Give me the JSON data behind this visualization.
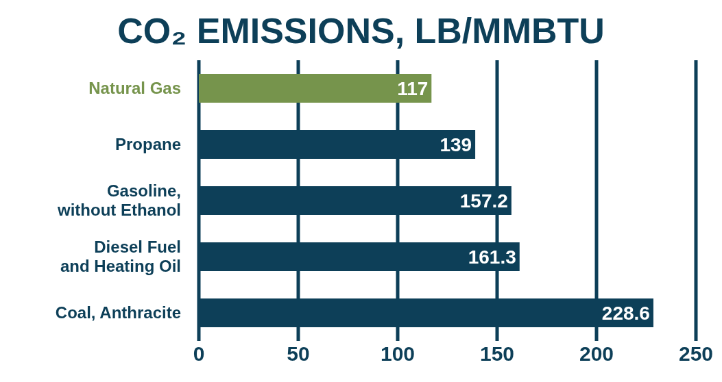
{
  "chart_data": {
    "type": "bar",
    "orientation": "horizontal",
    "title": "CO₂ EMISSIONS, LB/MMBTU",
    "categories": [
      "Natural Gas",
      "Propane",
      "Gasoline, without Ethanol",
      "Diesel Fuel and Heating Oil",
      "Coal, Anthracite"
    ],
    "values": [
      117,
      139,
      157.2,
      161.3,
      228.6
    ],
    "colors": [
      "#76944c",
      "#0d3f58",
      "#0d3f58",
      "#0d3f58",
      "#0d3f58"
    ],
    "xlim": [
      0,
      250
    ],
    "xticks": [
      0,
      50,
      100,
      150,
      200,
      250
    ],
    "grid": "x",
    "data_labels": true
  }
}
